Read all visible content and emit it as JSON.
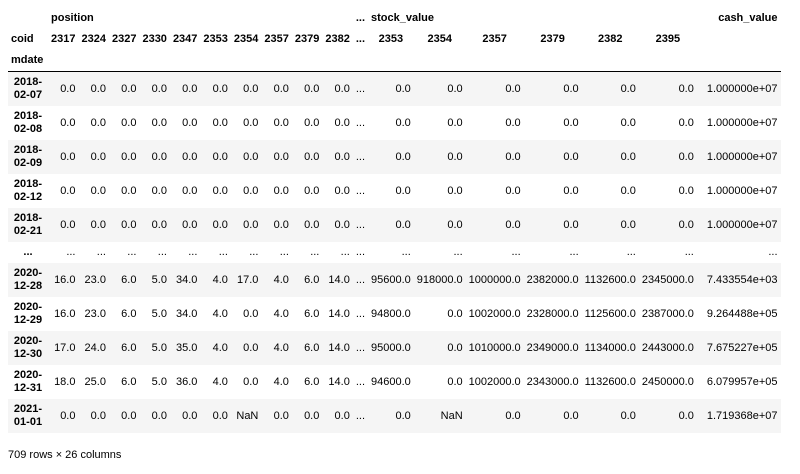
{
  "dataframe": {
    "header": {
      "groups": [
        {
          "label": "position",
          "span": 10,
          "align": "left"
        },
        {
          "label": "...",
          "span": 1,
          "align": "center"
        },
        {
          "label": "stock_value",
          "span": 6,
          "align": "left"
        },
        {
          "label": "cash_value",
          "span": 1,
          "align": "right"
        }
      ],
      "columns_name": "coid",
      "index_name": "mdate",
      "ellipsis": "...",
      "position_coids": [
        "2317",
        "2324",
        "2327",
        "2330",
        "2347",
        "2353",
        "2354",
        "2357",
        "2379",
        "2382"
      ],
      "stock_coids": [
        "2353",
        "2354",
        "2357",
        "2379",
        "2382",
        "2395"
      ],
      "cash_coid": ""
    },
    "rows": [
      {
        "index": "2018-02-07",
        "position": [
          "0.0",
          "0.0",
          "0.0",
          "0.0",
          "0.0",
          "0.0",
          "0.0",
          "0.0",
          "0.0",
          "0.0"
        ],
        "ellipsis": "...",
        "stock": [
          "0.0",
          "0.0",
          "0.0",
          "0.0",
          "0.0",
          "0.0"
        ],
        "cash": "1.000000e+07"
      },
      {
        "index": "2018-02-08",
        "position": [
          "0.0",
          "0.0",
          "0.0",
          "0.0",
          "0.0",
          "0.0",
          "0.0",
          "0.0",
          "0.0",
          "0.0"
        ],
        "ellipsis": "...",
        "stock": [
          "0.0",
          "0.0",
          "0.0",
          "0.0",
          "0.0",
          "0.0"
        ],
        "cash": "1.000000e+07"
      },
      {
        "index": "2018-02-09",
        "position": [
          "0.0",
          "0.0",
          "0.0",
          "0.0",
          "0.0",
          "0.0",
          "0.0",
          "0.0",
          "0.0",
          "0.0"
        ],
        "ellipsis": "...",
        "stock": [
          "0.0",
          "0.0",
          "0.0",
          "0.0",
          "0.0",
          "0.0"
        ],
        "cash": "1.000000e+07"
      },
      {
        "index": "2018-02-12",
        "position": [
          "0.0",
          "0.0",
          "0.0",
          "0.0",
          "0.0",
          "0.0",
          "0.0",
          "0.0",
          "0.0",
          "0.0"
        ],
        "ellipsis": "...",
        "stock": [
          "0.0",
          "0.0",
          "0.0",
          "0.0",
          "0.0",
          "0.0"
        ],
        "cash": "1.000000e+07"
      },
      {
        "index": "2018-02-21",
        "position": [
          "0.0",
          "0.0",
          "0.0",
          "0.0",
          "0.0",
          "0.0",
          "0.0",
          "0.0",
          "0.0",
          "0.0"
        ],
        "ellipsis": "...",
        "stock": [
          "0.0",
          "0.0",
          "0.0",
          "0.0",
          "0.0",
          "0.0"
        ],
        "cash": "1.000000e+07"
      },
      {
        "index": "...",
        "position": [
          "...",
          "...",
          "...",
          "...",
          "...",
          "...",
          "...",
          "...",
          "...",
          "..."
        ],
        "ellipsis": "...",
        "stock": [
          "...",
          "...",
          "...",
          "...",
          "...",
          "..."
        ],
        "cash": "..."
      },
      {
        "index": "2020-12-28",
        "position": [
          "16.0",
          "23.0",
          "6.0",
          "5.0",
          "34.0",
          "4.0",
          "17.0",
          "4.0",
          "6.0",
          "14.0"
        ],
        "ellipsis": "...",
        "stock": [
          "95600.0",
          "918000.0",
          "1000000.0",
          "2382000.0",
          "1132600.0",
          "2345000.0"
        ],
        "cash": "7.433554e+03"
      },
      {
        "index": "2020-12-29",
        "position": [
          "16.0",
          "23.0",
          "6.0",
          "5.0",
          "34.0",
          "4.0",
          "0.0",
          "4.0",
          "6.0",
          "14.0"
        ],
        "ellipsis": "...",
        "stock": [
          "94800.0",
          "0.0",
          "1002000.0",
          "2328000.0",
          "1125600.0",
          "2387000.0"
        ],
        "cash": "9.264488e+05"
      },
      {
        "index": "2020-12-30",
        "position": [
          "17.0",
          "24.0",
          "6.0",
          "5.0",
          "35.0",
          "4.0",
          "0.0",
          "4.0",
          "6.0",
          "14.0"
        ],
        "ellipsis": "...",
        "stock": [
          "95000.0",
          "0.0",
          "1010000.0",
          "2349000.0",
          "1134000.0",
          "2443000.0"
        ],
        "cash": "7.675227e+05"
      },
      {
        "index": "2020-12-31",
        "position": [
          "18.0",
          "25.0",
          "6.0",
          "5.0",
          "36.0",
          "4.0",
          "0.0",
          "4.0",
          "6.0",
          "14.0"
        ],
        "ellipsis": "...",
        "stock": [
          "94600.0",
          "0.0",
          "1002000.0",
          "2343000.0",
          "1132600.0",
          "2450000.0"
        ],
        "cash": "6.079957e+05"
      },
      {
        "index": "2021-01-01",
        "position": [
          "0.0",
          "0.0",
          "0.0",
          "0.0",
          "0.0",
          "0.0",
          "NaN",
          "0.0",
          "0.0",
          "0.0"
        ],
        "ellipsis": "...",
        "stock": [
          "0.0",
          "NaN",
          "0.0",
          "0.0",
          "0.0",
          "0.0"
        ],
        "cash": "1.719368e+07"
      }
    ],
    "footer": "709 rows × 26 columns",
    "colors": {
      "stripe": "#f5f5f5",
      "text": "#000000",
      "header_border": "#000000"
    }
  }
}
